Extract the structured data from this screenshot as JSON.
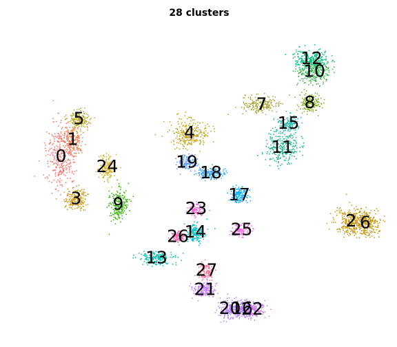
{
  "chart_data": {
    "type": "scatter",
    "title": "28 clusters",
    "xlabel": "",
    "ylabel": "",
    "axes_visible": false,
    "grid": false,
    "legend": "none",
    "xlim": [
      0,
      100
    ],
    "ylim": [
      0,
      100
    ],
    "clusters": [
      {
        "label": "0",
        "color": "#F8766D",
        "x": 9.7,
        "y": 57.6
      },
      {
        "label": "1",
        "color": "#F07F4E",
        "x": 13.1,
        "y": 63.5
      },
      {
        "label": "2",
        "color": "#C9960F",
        "x": 93.9,
        "y": 35.2
      },
      {
        "label": "3",
        "color": "#D49A17",
        "x": 14.1,
        "y": 43.0
      },
      {
        "label": "4",
        "color": "#C4A21A",
        "x": 47.0,
        "y": 65.7
      },
      {
        "label": "5",
        "color": "#B7A521",
        "x": 14.9,
        "y": 70.6
      },
      {
        "label": "6",
        "color": "#C69812",
        "x": 98.0,
        "y": 34.7
      },
      {
        "label": "7",
        "color": "#A8A63F",
        "x": 67.9,
        "y": 75.6
      },
      {
        "label": "8",
        "color": "#7FAE1D",
        "x": 81.9,
        "y": 76.2
      },
      {
        "label": "9",
        "color": "#2DB600",
        "x": 26.3,
        "y": 41.1
      },
      {
        "label": "10",
        "color": "#37B34A",
        "x": 83.2,
        "y": 87.0
      },
      {
        "label": "11",
        "color": "#17B58A",
        "x": 73.9,
        "y": 60.7
      },
      {
        "label": "12",
        "color": "#00BF7D",
        "x": 82.4,
        "y": 91.4
      },
      {
        "label": "13",
        "color": "#00BFB4",
        "x": 37.4,
        "y": 22.5
      },
      {
        "label": "14",
        "color": "#00BFC4",
        "x": 48.7,
        "y": 31.4
      },
      {
        "label": "15",
        "color": "#2DBBB0",
        "x": 75.7,
        "y": 69.0
      },
      {
        "label": "16",
        "color": "#A68CF8",
        "x": 62.2,
        "y": 5.0
      },
      {
        "label": "17",
        "color": "#00A9FF",
        "x": 61.4,
        "y": 44.3
      },
      {
        "label": "18",
        "color": "#3AA4F0",
        "x": 53.2,
        "y": 51.9
      },
      {
        "label": "19",
        "color": "#619CFF",
        "x": 46.2,
        "y": 55.6
      },
      {
        "label": "20",
        "color": "#B289F3",
        "x": 58.7,
        "y": 5.0
      },
      {
        "label": "21",
        "color": "#C77CFF",
        "x": 51.5,
        "y": 11.6
      },
      {
        "label": "22",
        "color": "#C97AF0",
        "x": 65.2,
        "y": 4.8
      },
      {
        "label": "23",
        "color": "#F26DD8",
        "x": 48.9,
        "y": 39.5
      },
      {
        "label": "24",
        "color": "#D7B12A",
        "x": 23.1,
        "y": 54.1
      },
      {
        "label": "25",
        "color": "#F564E3",
        "x": 62.1,
        "y": 32.3
      },
      {
        "label": "26",
        "color": "#FF63B6",
        "x": 43.6,
        "y": 29.9
      },
      {
        "label": "27",
        "color": "#FF6C91",
        "x": 51.9,
        "y": 18.2
      }
    ]
  }
}
